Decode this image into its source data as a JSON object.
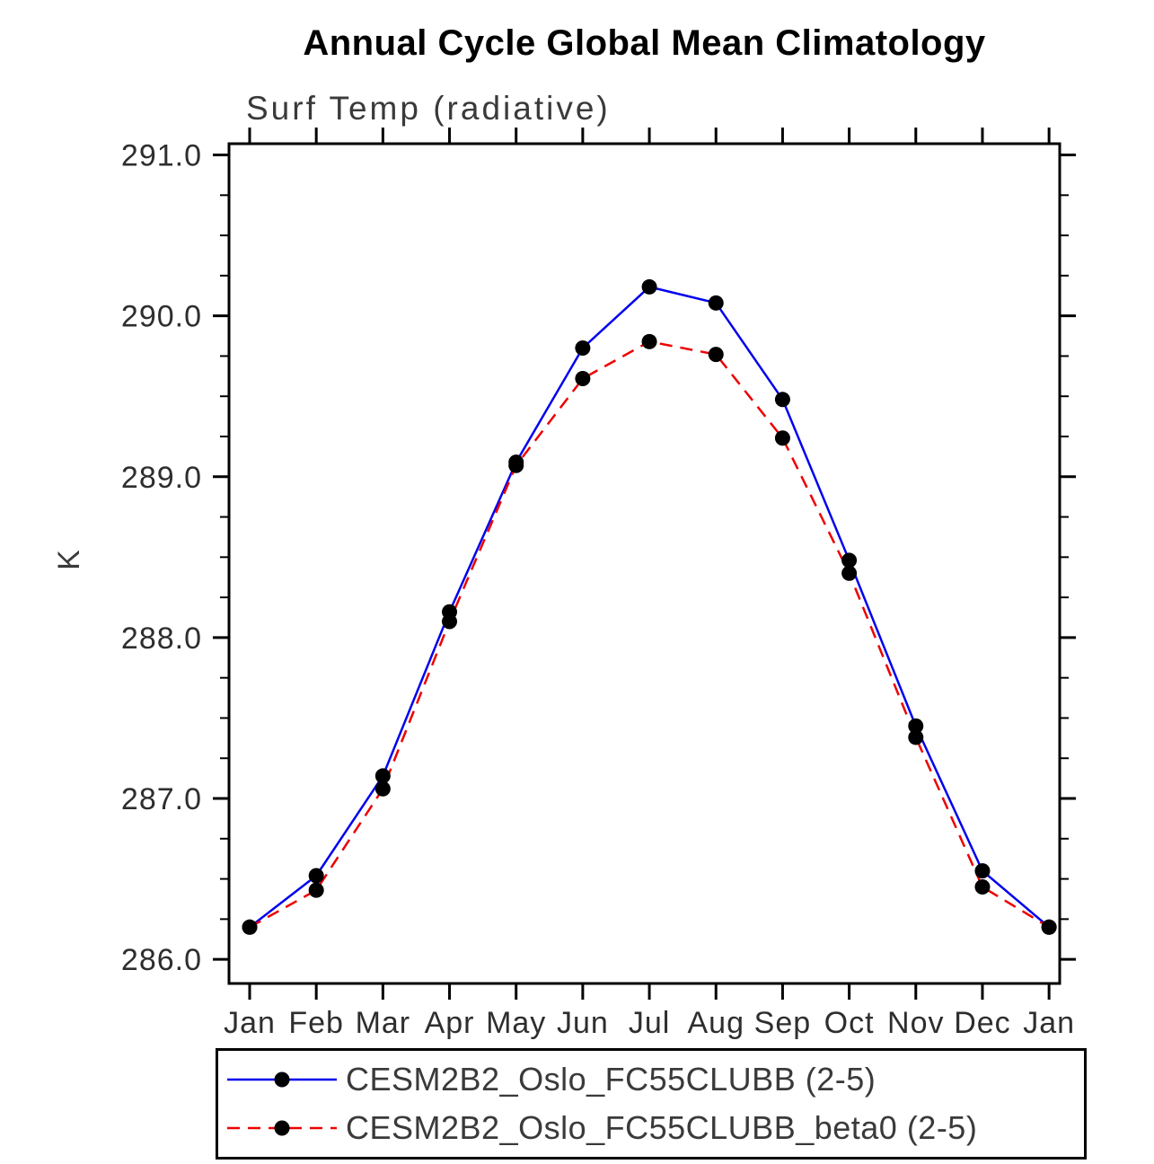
{
  "chart_data": {
    "type": "line",
    "title": "Annual Cycle Global Mean Climatology",
    "subtitle": "Surf Temp (radiative)",
    "ylabel": "K",
    "xlabel": "",
    "categories": [
      "Jan",
      "Feb",
      "Mar",
      "Apr",
      "May",
      "Jun",
      "Jul",
      "Aug",
      "Sep",
      "Oct",
      "Nov",
      "Dec",
      "Jan"
    ],
    "x": [
      0,
      1,
      2,
      3,
      4,
      5,
      6,
      7,
      8,
      9,
      10,
      11,
      12
    ],
    "xlim": [
      -0.31,
      12.16
    ],
    "ylim": [
      285.85,
      291.07
    ],
    "yticks": [
      286.0,
      287.0,
      288.0,
      289.0,
      290.0,
      291.0
    ],
    "ytick_labels": [
      "286.0",
      "287.0",
      "288.0",
      "289.0",
      "290.0",
      "291.0"
    ],
    "minor_y_step": 0.25,
    "grid": false,
    "legend_position": "bottom",
    "marker_color": "#000000",
    "series": [
      {
        "name": "CESM2B2_Oslo_FC55CLUBB (2-5)",
        "color": "#0000ee",
        "dash": "solid",
        "values": [
          286.2,
          286.52,
          287.14,
          288.16,
          289.09,
          289.8,
          290.18,
          290.08,
          289.48,
          288.48,
          287.45,
          286.55,
          286.2
        ]
      },
      {
        "name": "CESM2B2_Oslo_FC55CLUBB_beta0 (2-5)",
        "color": "#ee0000",
        "dash": "dashed",
        "values": [
          286.2,
          286.43,
          287.06,
          288.1,
          289.07,
          289.61,
          289.84,
          289.76,
          289.24,
          288.4,
          287.38,
          286.45,
          286.2
        ]
      }
    ]
  }
}
